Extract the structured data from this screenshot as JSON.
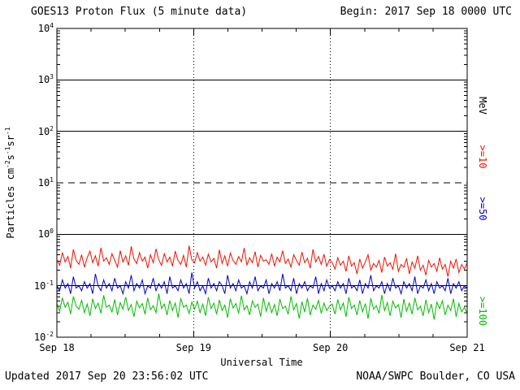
{
  "header": {
    "title": "GOES13 Proton Flux (5 minute data)",
    "begin": "Begin: 2017 Sep 18 0000 UTC"
  },
  "footer": {
    "updated": "Updated 2017 Sep 20 23:56:02 UTC",
    "credit": "NOAA/SWPC Boulder, CO USA"
  },
  "chart_data": {
    "type": "line",
    "title": "GOES13 Proton Flux (5 minute data)",
    "xlabel": "Universal Time",
    "ylabel": "Particles cm-2 s-1 sr-1",
    "ylabel_segments": [
      {
        "t": "Particles cm"
      },
      {
        "t": "-2",
        "sup": true
      },
      {
        "t": "s"
      },
      {
        "t": "-1",
        "sup": true
      },
      {
        "t": "sr"
      },
      {
        "t": "-1",
        "sup": true
      }
    ],
    "y_scale": "log",
    "y_range": [
      0.01,
      10000
    ],
    "y_tick_exponents": [
      "4",
      "3",
      "2",
      "1",
      "0",
      "-1",
      "-2"
    ],
    "y_gridlines": [
      {
        "exp": 3,
        "style": "solid"
      },
      {
        "exp": 2,
        "style": "solid"
      },
      {
        "exp": 1,
        "style": "dashed"
      },
      {
        "exp": 0,
        "style": "solid"
      },
      {
        "exp": -1,
        "style": "solid"
      }
    ],
    "x_ticks": [
      "Sep 18",
      "Sep 19",
      "Sep 20",
      "Sep 21"
    ],
    "x_range_days": 3,
    "x_gridline_days": [
      1,
      2
    ],
    "minor_x_tick_hours": 6,
    "legend_position": "right",
    "grid": true,
    "right_labels": [
      {
        "text": "MeV",
        "color": "#000000",
        "band": [
          2,
          3
        ]
      },
      {
        "text": ">=10",
        "color": "#ee1100",
        "band": [
          1,
          2
        ]
      },
      {
        "text": ">=50",
        "color": "#0000cc",
        "band": [
          0,
          1
        ]
      },
      {
        "text": ">=100",
        "color": "#00bb00",
        "band": [
          -2,
          -1
        ]
      }
    ],
    "series": [
      {
        "name": "gte10",
        "label": ">=10",
        "units": "MeV",
        "color": "#ee1100",
        "values": [
          0.32,
          0.25,
          0.44,
          0.29,
          0.37,
          0.22,
          0.51,
          0.31,
          0.26,
          0.4,
          0.23,
          0.35,
          0.47,
          0.28,
          0.38,
          0.24,
          0.55,
          0.3,
          0.35,
          0.26,
          0.42,
          0.31,
          0.23,
          0.48,
          0.29,
          0.38,
          0.25,
          0.58,
          0.33,
          0.27,
          0.44,
          0.3,
          0.36,
          0.22,
          0.4,
          0.28,
          0.52,
          0.32,
          0.25,
          0.42,
          0.29,
          0.36,
          0.24,
          0.47,
          0.31,
          0.26,
          0.39,
          0.23,
          0.6,
          0.32,
          0.28,
          0.44,
          0.3,
          0.36,
          0.25,
          0.41,
          0.29,
          0.34,
          0.22,
          0.5,
          0.27,
          0.38,
          0.24,
          0.43,
          0.31,
          0.26,
          0.37,
          0.29,
          0.54,
          0.25,
          0.35,
          0.28,
          0.46,
          0.23,
          0.39,
          0.3,
          0.32,
          0.26,
          0.42,
          0.24,
          0.36,
          0.29,
          0.48,
          0.27,
          0.33,
          0.23,
          0.4,
          0.31,
          0.25,
          0.45,
          0.28,
          0.34,
          0.22,
          0.51,
          0.29,
          0.37,
          0.26,
          0.41,
          0.24,
          0.32,
          0.28,
          0.21,
          0.35,
          0.25,
          0.3,
          0.19,
          0.38,
          0.24,
          0.28,
          0.17,
          0.33,
          0.22,
          0.29,
          0.4,
          0.2,
          0.27,
          0.23,
          0.31,
          0.18,
          0.36,
          0.24,
          0.28,
          0.21,
          0.42,
          0.19,
          0.26,
          0.23,
          0.34,
          0.17,
          0.29,
          0.22,
          0.38,
          0.2,
          0.25,
          0.16,
          0.31,
          0.23,
          0.27,
          0.19,
          0.35,
          0.21,
          0.26,
          0.15,
          0.3,
          0.22,
          0.33,
          0.18,
          0.26,
          0.21,
          0.28
        ]
      },
      {
        "name": "gte50",
        "label": ">=50",
        "units": "MeV",
        "color": "#0000cc",
        "values": [
          0.1,
          0.08,
          0.13,
          0.09,
          0.11,
          0.07,
          0.15,
          0.09,
          0.1,
          0.08,
          0.12,
          0.09,
          0.11,
          0.07,
          0.17,
          0.1,
          0.08,
          0.13,
          0.09,
          0.11,
          0.08,
          0.14,
          0.09,
          0.1,
          0.07,
          0.12,
          0.09,
          0.16,
          0.08,
          0.11,
          0.09,
          0.13,
          0.07,
          0.1,
          0.09,
          0.14,
          0.08,
          0.11,
          0.09,
          0.12,
          0.07,
          0.15,
          0.09,
          0.1,
          0.08,
          0.13,
          0.09,
          0.11,
          0.07,
          0.18,
          0.09,
          0.12,
          0.08,
          0.1,
          0.07,
          0.14,
          0.09,
          0.11,
          0.08,
          0.12,
          0.1,
          0.07,
          0.16,
          0.09,
          0.11,
          0.08,
          0.13,
          0.09,
          0.1,
          0.07,
          0.12,
          0.09,
          0.15,
          0.08,
          0.1,
          0.09,
          0.13,
          0.07,
          0.11,
          0.09,
          0.12,
          0.08,
          0.17,
          0.09,
          0.1,
          0.08,
          0.14,
          0.07,
          0.11,
          0.09,
          0.12,
          0.08,
          0.1,
          0.09,
          0.15,
          0.07,
          0.11,
          0.08,
          0.13,
          0.09,
          0.1,
          0.08,
          0.12,
          0.09,
          0.11,
          0.07,
          0.14,
          0.09,
          0.1,
          0.08,
          0.13,
          0.07,
          0.11,
          0.09,
          0.16,
          0.08,
          0.1,
          0.09,
          0.12,
          0.07,
          0.11,
          0.08,
          0.14,
          0.09,
          0.1,
          0.07,
          0.12,
          0.09,
          0.11,
          0.08,
          0.15,
          0.07,
          0.1,
          0.09,
          0.13,
          0.08,
          0.11,
          0.07,
          0.12,
          0.09,
          0.1,
          0.08,
          0.14,
          0.07,
          0.11,
          0.09,
          0.12,
          0.08,
          0.1,
          0.09
        ]
      },
      {
        "name": "gte100",
        "label": ">=100",
        "units": "MeV",
        "color": "#00bb00",
        "values": [
          0.045,
          0.032,
          0.058,
          0.038,
          0.048,
          0.028,
          0.062,
          0.04,
          0.035,
          0.052,
          0.03,
          0.044,
          0.026,
          0.056,
          0.036,
          0.046,
          0.029,
          0.065,
          0.038,
          0.042,
          0.031,
          0.054,
          0.027,
          0.047,
          0.035,
          0.06,
          0.033,
          0.043,
          0.025,
          0.05,
          0.037,
          0.045,
          0.028,
          0.058,
          0.034,
          0.041,
          0.03,
          0.07,
          0.036,
          0.044,
          0.027,
          0.052,
          0.033,
          0.046,
          0.024,
          0.057,
          0.038,
          0.042,
          0.029,
          0.048,
          0.035,
          0.05,
          0.03,
          0.044,
          0.026,
          0.06,
          0.036,
          0.046,
          0.028,
          0.053,
          0.033,
          0.042,
          0.024,
          0.056,
          0.037,
          0.045,
          0.029,
          0.064,
          0.034,
          0.041,
          0.027,
          0.051,
          0.038,
          0.044,
          0.025,
          0.058,
          0.032,
          0.047,
          0.03,
          0.043,
          0.026,
          0.055,
          0.036,
          0.04,
          0.028,
          0.062,
          0.034,
          0.045,
          0.023,
          0.049,
          0.031,
          0.057,
          0.027,
          0.042,
          0.035,
          0.052,
          0.029,
          0.046,
          0.033,
          0.04,
          0.044,
          0.028,
          0.054,
          0.034,
          0.046,
          0.025,
          0.06,
          0.036,
          0.042,
          0.027,
          0.052,
          0.031,
          0.045,
          0.023,
          0.057,
          0.035,
          0.041,
          0.029,
          0.066,
          0.033,
          0.047,
          0.026,
          0.05,
          0.037,
          0.043,
          0.024,
          0.055,
          0.032,
          0.046,
          0.028,
          0.058,
          0.034,
          0.04,
          0.026,
          0.053,
          0.03,
          0.044,
          0.022,
          0.048,
          0.036,
          0.051,
          0.027,
          0.042,
          0.033,
          0.056,
          0.025,
          0.045,
          0.031,
          0.038,
          0.029
        ]
      }
    ]
  }
}
